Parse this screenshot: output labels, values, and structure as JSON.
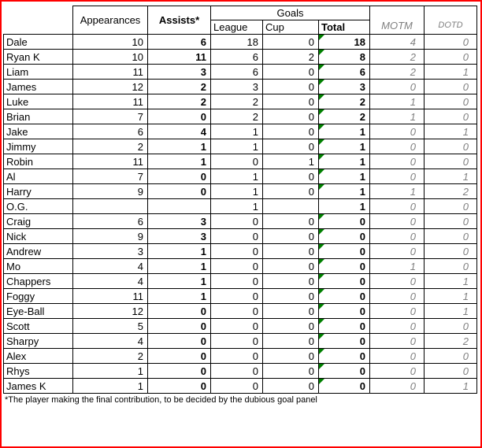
{
  "colors": {
    "page_border": "#FF0000",
    "grid_border": "#000000",
    "error_indicator": "#008000",
    "muted_text": "#808080"
  },
  "table": {
    "headers": {
      "appearances": "Appearances",
      "assists": "Assists*",
      "goals": "Goals",
      "league": "League",
      "cup": "Cup",
      "total": "Total",
      "motm": "MOTM",
      "dotd": "DOTD"
    },
    "rows": [
      {
        "name": "Dale",
        "appearances": "10",
        "assists": "6",
        "league": "18",
        "cup": "0",
        "total": "18",
        "motm": "4",
        "dotd": "0",
        "indicator": true
      },
      {
        "name": "Ryan K",
        "appearances": "10",
        "assists": "11",
        "league": "6",
        "cup": "2",
        "total": "8",
        "motm": "2",
        "dotd": "0",
        "indicator": true
      },
      {
        "name": "Liam",
        "appearances": "11",
        "assists": "3",
        "league": "6",
        "cup": "0",
        "total": "6",
        "motm": "2",
        "dotd": "1",
        "indicator": true
      },
      {
        "name": "James",
        "appearances": "12",
        "assists": "2",
        "league": "3",
        "cup": "0",
        "total": "3",
        "motm": "0",
        "dotd": "0",
        "indicator": true
      },
      {
        "name": "Luke",
        "appearances": "11",
        "assists": "2",
        "league": "2",
        "cup": "0",
        "total": "2",
        "motm": "1",
        "dotd": "0",
        "indicator": true
      },
      {
        "name": "Brian",
        "appearances": "7",
        "assists": "0",
        "league": "2",
        "cup": "0",
        "total": "2",
        "motm": "1",
        "dotd": "0",
        "indicator": true
      },
      {
        "name": "Jake",
        "appearances": "6",
        "assists": "4",
        "league": "1",
        "cup": "0",
        "total": "1",
        "motm": "0",
        "dotd": "1",
        "indicator": true
      },
      {
        "name": "Jimmy",
        "appearances": "2",
        "assists": "1",
        "league": "1",
        "cup": "0",
        "total": "1",
        "motm": "0",
        "dotd": "0",
        "indicator": true
      },
      {
        "name": "Robin",
        "appearances": "11",
        "assists": "1",
        "league": "0",
        "cup": "1",
        "total": "1",
        "motm": "0",
        "dotd": "0",
        "indicator": true
      },
      {
        "name": "Al",
        "appearances": "7",
        "assists": "0",
        "league": "1",
        "cup": "0",
        "total": "1",
        "motm": "0",
        "dotd": "1",
        "indicator": true
      },
      {
        "name": "Harry",
        "appearances": "9",
        "assists": "0",
        "league": "1",
        "cup": "0",
        "total": "1",
        "motm": "1",
        "dotd": "2",
        "indicator": true
      },
      {
        "name": "O.G.",
        "appearances": "",
        "assists": "",
        "league": "1",
        "cup": "",
        "total": "1",
        "motm": "0",
        "dotd": "0",
        "indicator": false
      },
      {
        "name": "Craig",
        "appearances": "6",
        "assists": "3",
        "league": "0",
        "cup": "0",
        "total": "0",
        "motm": "0",
        "dotd": "0",
        "indicator": true
      },
      {
        "name": "Nick",
        "appearances": "9",
        "assists": "3",
        "league": "0",
        "cup": "0",
        "total": "0",
        "motm": "0",
        "dotd": "0",
        "indicator": true
      },
      {
        "name": "Andrew",
        "appearances": "3",
        "assists": "1",
        "league": "0",
        "cup": "0",
        "total": "0",
        "motm": "0",
        "dotd": "0",
        "indicator": true
      },
      {
        "name": "Mo",
        "appearances": "4",
        "assists": "1",
        "league": "0",
        "cup": "0",
        "total": "0",
        "motm": "1",
        "dotd": "0",
        "indicator": true
      },
      {
        "name": "Chappers",
        "appearances": "4",
        "assists": "1",
        "league": "0",
        "cup": "0",
        "total": "0",
        "motm": "0",
        "dotd": "1",
        "indicator": true
      },
      {
        "name": "Foggy",
        "appearances": "11",
        "assists": "1",
        "league": "0",
        "cup": "0",
        "total": "0",
        "motm": "0",
        "dotd": "1",
        "indicator": true
      },
      {
        "name": "Eye-Ball",
        "appearances": "12",
        "assists": "0",
        "league": "0",
        "cup": "0",
        "total": "0",
        "motm": "0",
        "dotd": "1",
        "indicator": true
      },
      {
        "name": "Scott",
        "appearances": "5",
        "assists": "0",
        "league": "0",
        "cup": "0",
        "total": "0",
        "motm": "0",
        "dotd": "0",
        "indicator": true
      },
      {
        "name": "Sharpy",
        "appearances": "4",
        "assists": "0",
        "league": "0",
        "cup": "0",
        "total": "0",
        "motm": "0",
        "dotd": "2",
        "indicator": true
      },
      {
        "name": "Alex",
        "appearances": "2",
        "assists": "0",
        "league": "0",
        "cup": "0",
        "total": "0",
        "motm": "0",
        "dotd": "0",
        "indicator": true
      },
      {
        "name": "Rhys",
        "appearances": "1",
        "assists": "0",
        "league": "0",
        "cup": "0",
        "total": "0",
        "motm": "0",
        "dotd": "0",
        "indicator": true
      },
      {
        "name": "James K",
        "appearances": "1",
        "assists": "0",
        "league": "0",
        "cup": "0",
        "total": "0",
        "motm": "0",
        "dotd": "1",
        "indicator": true
      }
    ]
  },
  "footnote": "*The player making the final contribution, to be decided by the dubious goal panel"
}
